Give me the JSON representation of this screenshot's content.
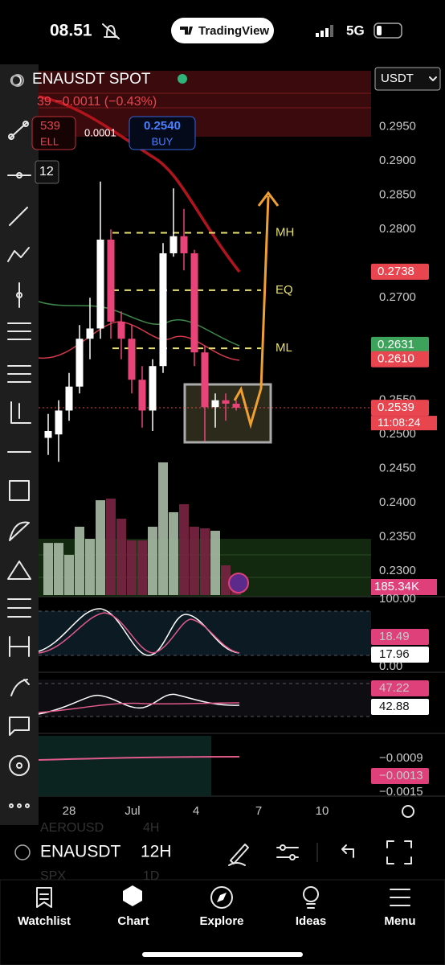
{
  "status_bar": {
    "time": "08.51",
    "app_name": "TradingView",
    "network": "5G"
  },
  "header": {
    "symbol": "ENAUSDT SPOT",
    "quote_currency": "USDT",
    "change": "39 −0.0011 (−0.43%)",
    "sell_price": "539",
    "sell_label": "ELL",
    "spread": "0.0001",
    "buy_price": "0.2540",
    "buy_label": "BUY",
    "interval_badge": "12"
  },
  "chart": {
    "ylim": [
      0.2265,
      0.3032
    ],
    "price_ticks": [
      {
        "value": 0.295,
        "label": "0.2950"
      },
      {
        "value": 0.29,
        "label": "0.2900"
      },
      {
        "value": 0.285,
        "label": "0.2850"
      },
      {
        "value": 0.28,
        "label": "0.2800"
      },
      {
        "value": 0.27,
        "label": "0.2700"
      },
      {
        "value": 0.255,
        "label": "0.2550"
      },
      {
        "value": 0.25,
        "label": "0.2500"
      },
      {
        "value": 0.245,
        "label": "0.2450"
      },
      {
        "value": 0.24,
        "label": "0.2400"
      },
      {
        "value": 0.235,
        "label": "0.2350"
      },
      {
        "value": 0.23,
        "label": "0.2300"
      }
    ],
    "price_tags": [
      {
        "value": 0.2738,
        "label": "0.2738",
        "color": "#e8454f"
      },
      {
        "value": 0.2631,
        "label": "0.2631",
        "color": "#3da35a"
      },
      {
        "value": 0.261,
        "label": "0.2610",
        "color": "#e8454f"
      },
      {
        "value": 0.2539,
        "label": "0.2539",
        "color": "#e8454f"
      }
    ],
    "countdown": "11:08:24",
    "levels": [
      {
        "name": "MH",
        "value": 0.2795
      },
      {
        "name": "EQ",
        "value": 0.2711
      },
      {
        "name": "ML",
        "value": 0.2626
      }
    ],
    "candles": [
      {
        "open": 0.2495,
        "high": 0.253,
        "low": 0.247,
        "close": 0.2505
      },
      {
        "open": 0.25,
        "high": 0.255,
        "low": 0.246,
        "close": 0.2535
      },
      {
        "open": 0.2535,
        "high": 0.259,
        "low": 0.252,
        "close": 0.257
      },
      {
        "open": 0.257,
        "high": 0.266,
        "low": 0.256,
        "close": 0.264
      },
      {
        "open": 0.264,
        "high": 0.27,
        "low": 0.261,
        "close": 0.2655
      },
      {
        "open": 0.2655,
        "high": 0.287,
        "low": 0.264,
        "close": 0.2785
      },
      {
        "open": 0.2785,
        "high": 0.28,
        "low": 0.264,
        "close": 0.2665
      },
      {
        "open": 0.2665,
        "high": 0.268,
        "low": 0.261,
        "close": 0.264
      },
      {
        "open": 0.264,
        "high": 0.266,
        "low": 0.256,
        "close": 0.258
      },
      {
        "open": 0.258,
        "high": 0.26,
        "low": 0.251,
        "close": 0.2535
      },
      {
        "open": 0.2535,
        "high": 0.261,
        "low": 0.2505,
        "close": 0.26
      },
      {
        "open": 0.26,
        "high": 0.278,
        "low": 0.259,
        "close": 0.2765
      },
      {
        "open": 0.2765,
        "high": 0.286,
        "low": 0.276,
        "close": 0.279
      },
      {
        "open": 0.279,
        "high": 0.283,
        "low": 0.274,
        "close": 0.2765
      },
      {
        "open": 0.2765,
        "high": 0.277,
        "low": 0.26,
        "close": 0.262
      },
      {
        "open": 0.262,
        "high": 0.263,
        "low": 0.249,
        "close": 0.254
      },
      {
        "open": 0.254,
        "high": 0.256,
        "low": 0.251,
        "close": 0.255
      },
      {
        "open": 0.255,
        "high": 0.256,
        "low": 0.252,
        "close": 0.2545
      },
      {
        "open": 0.2545,
        "high": 0.255,
        "low": 0.2535,
        "close": 0.2539
      }
    ],
    "volume_ylim": [
      0,
      1600
    ],
    "volumes": [
      600,
      600,
      462,
      786,
      647,
      1091,
      1110,
      879,
      629,
      629,
      786,
      1526,
      953,
      1045,
      786,
      768,
      740,
      342,
      185.34
    ],
    "volume_label": "185.34K",
    "oscillator_labels": {
      "top": "100.00",
      "bottom": "0.00",
      "k": "18.49",
      "d": "17.96"
    },
    "rsi_labels": {
      "a": "47.22",
      "b": "42.88"
    },
    "macd_labels": {
      "top": "−0.0009",
      "current": "−0.0013",
      "bottom": "−0.0015"
    },
    "x_labels": [
      "28",
      "Jul",
      "4",
      "7",
      "10"
    ]
  },
  "toolbar": {
    "symbol": "ENAUSDT",
    "interval": "12H",
    "ghost_above": "AEROUSD",
    "ghost_above_interval": "4H",
    "ghost_below": "SPX",
    "ghost_below_interval": "1D"
  },
  "tabs": [
    "Watchlist",
    "Chart",
    "Explore",
    "Ideas",
    "Menu"
  ]
}
